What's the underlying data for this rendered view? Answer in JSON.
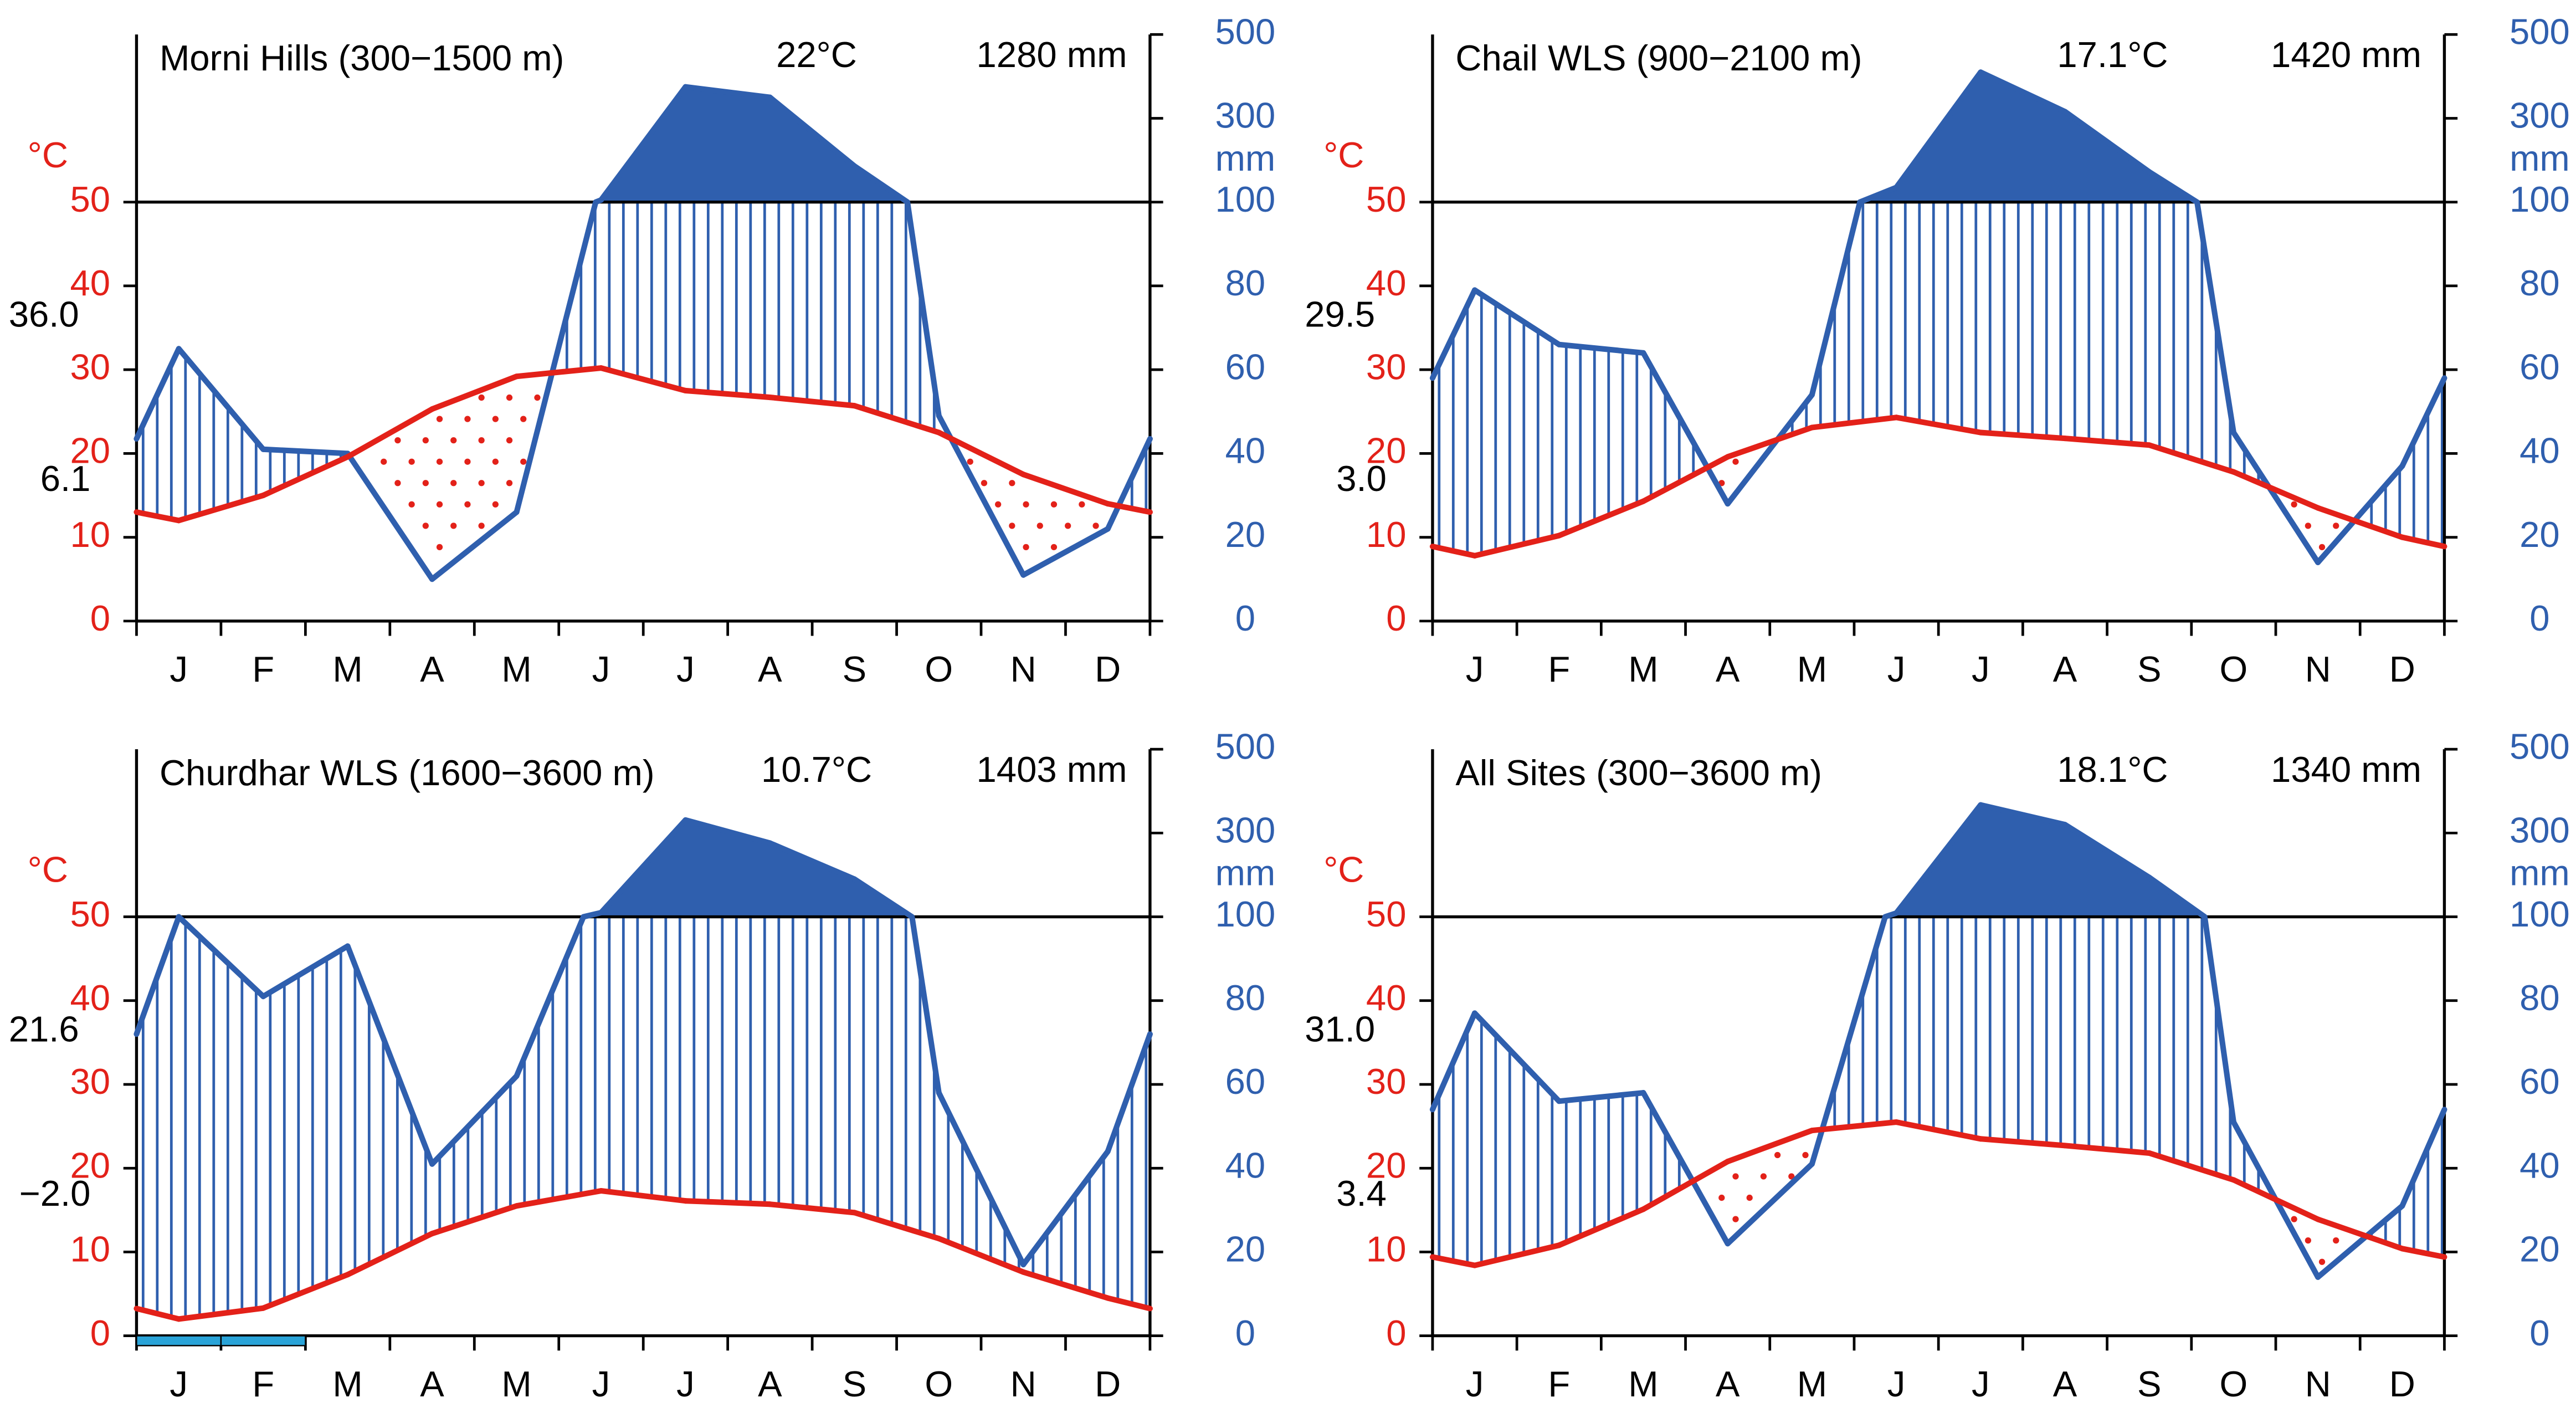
{
  "chart_data": [
    {
      "type": "climate",
      "title": "Morni Hills (300−1500 m)",
      "mean_temp": "22°C",
      "annual_precip": "1280 mm",
      "max_label": "36.0",
      "min_label": "6.1",
      "categories": [
        "J",
        "F",
        "M",
        "A",
        "M",
        "J",
        "J",
        "A",
        "S",
        "O",
        "N",
        "D"
      ],
      "temperature": {
        "color": "#e32119",
        "values": [
          12,
          15,
          19.6,
          25.3,
          29.2,
          30.2,
          27.5,
          26.7,
          25.7,
          22.5,
          17.5,
          14
        ]
      },
      "precipitation": {
        "color": "#2f5fae",
        "axis": "y2",
        "values": [
          65,
          41,
          40,
          10,
          26,
          105,
          375,
          350,
          186,
          49,
          11,
          22
        ]
      },
      "ylabel": "°C",
      "y2label": "mm",
      "ylim": [
        0,
        70
      ],
      "yticks": [
        0,
        10,
        20,
        30,
        40,
        50
      ],
      "y2lim": [
        0,
        500
      ],
      "y2ticks": [
        0,
        20,
        40,
        60,
        80,
        100,
        300,
        500
      ]
    },
    {
      "type": "climate",
      "title": "Chail WLS (900−2100 m)",
      "mean_temp": "17.1°C",
      "annual_precip": "1420 mm",
      "max_label": "29.5",
      "min_label": "3.0",
      "categories": [
        "J",
        "F",
        "M",
        "A",
        "M",
        "J",
        "J",
        "A",
        "S",
        "O",
        "N",
        "D"
      ],
      "temperature": {
        "color": "#e32119",
        "values": [
          7.8,
          10.2,
          14.3,
          19.6,
          23.1,
          24.3,
          22.5,
          21.8,
          21,
          17.8,
          13.5,
          10
        ]
      },
      "precipitation": {
        "color": "#2f5fae",
        "axis": "y2",
        "values": [
          79,
          66,
          64,
          28,
          54,
          135,
          410,
          316,
          172,
          45,
          14,
          37
        ]
      },
      "ylabel": "°C",
      "y2label": "mm",
      "ylim": [
        0,
        70
      ],
      "yticks": [
        0,
        10,
        20,
        30,
        40,
        50
      ],
      "y2lim": [
        0,
        500
      ],
      "y2ticks": [
        0,
        20,
        40,
        60,
        80,
        100,
        300,
        500
      ]
    },
    {
      "type": "climate",
      "title": "Churdhar WLS (1600−3600 m)",
      "mean_temp": "10.7°C",
      "annual_precip": "1403 mm",
      "max_label": "21.6",
      "min_label": "−2.0",
      "categories": [
        "J",
        "F",
        "M",
        "A",
        "M",
        "J",
        "J",
        "A",
        "S",
        "O",
        "N",
        "D"
      ],
      "temperature": {
        "color": "#e32119",
        "values": [
          2,
          3.3,
          7.3,
          12.2,
          15.5,
          17.3,
          16.1,
          15.7,
          14.7,
          11.6,
          7.6,
          4.5
        ]
      },
      "precipitation": {
        "color": "#2f5fae",
        "axis": "y2",
        "values": [
          100,
          81,
          93,
          41,
          62,
          110,
          331,
          276,
          190,
          58,
          17,
          44
        ]
      },
      "frost_months": [
        0,
        1
      ],
      "frost_color": "#29a3d8",
      "ylabel": "°C",
      "y2label": "mm",
      "ylim": [
        0,
        70
      ],
      "yticks": [
        0,
        10,
        20,
        30,
        40,
        50
      ],
      "y2lim": [
        0,
        500
      ],
      "y2ticks": [
        0,
        20,
        40,
        60,
        80,
        100,
        300,
        500
      ]
    },
    {
      "type": "climate",
      "title": "All Sites (300−3600 m)",
      "mean_temp": "18.1°C",
      "annual_precip": "1340 mm",
      "max_label": "31.0",
      "min_label": "3.4",
      "categories": [
        "J",
        "F",
        "M",
        "A",
        "M",
        "J",
        "J",
        "A",
        "S",
        "O",
        "N",
        "D"
      ],
      "temperature": {
        "color": "#e32119",
        "values": [
          8.4,
          10.8,
          15.1,
          20.8,
          24.5,
          25.5,
          23.5,
          22.7,
          21.8,
          18.6,
          13.9,
          10.4
        ]
      },
      "precipitation": {
        "color": "#2f5fae",
        "axis": "y2",
        "values": [
          77,
          56,
          58,
          22,
          41,
          109,
          367,
          320,
          194,
          51,
          14,
          31
        ]
      },
      "ylabel": "°C",
      "y2label": "mm",
      "ylim": [
        0,
        70
      ],
      "yticks": [
        0,
        10,
        20,
        30,
        40,
        50
      ],
      "y2lim": [
        0,
        500
      ],
      "y2ticks": [
        0,
        20,
        40,
        60,
        80,
        100,
        300,
        500
      ]
    }
  ]
}
